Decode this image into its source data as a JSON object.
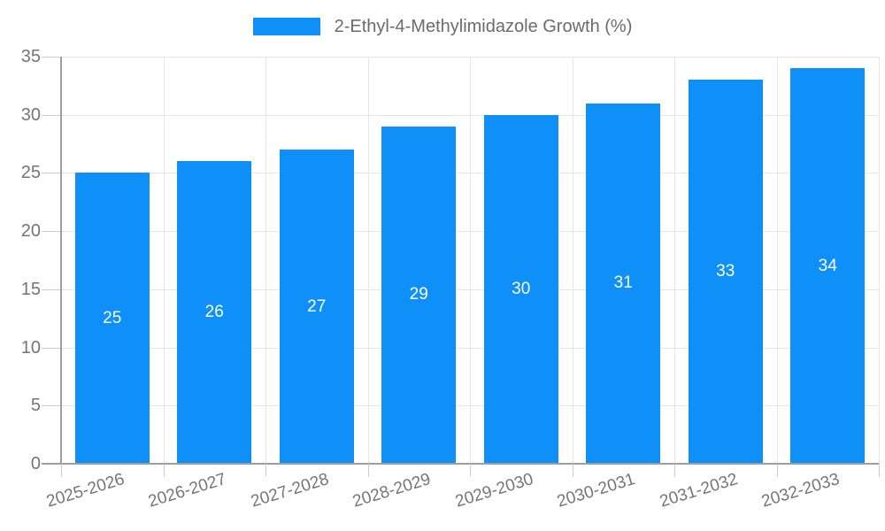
{
  "chart_data": {
    "type": "bar",
    "legend": "2-Ethyl-4-Methylimidazole Growth (%)",
    "series": [
      {
        "name": "2-Ethyl-4-Methylimidazole Growth (%)",
        "values": [
          25,
          26,
          27,
          29,
          30,
          31,
          33,
          34
        ]
      }
    ],
    "categories": [
      "2025-2026",
      "2026-2027",
      "2027-2028",
      "2028-2029",
      "2029-2030",
      "2030-2031",
      "2031-2032",
      "2032-2033"
    ],
    "bar_labels": [
      "25",
      "26",
      "27",
      "29",
      "30",
      "31",
      "33",
      "34"
    ],
    "yticks": [
      "0",
      "5",
      "10",
      "15",
      "20",
      "25",
      "30",
      "35"
    ],
    "ylim": [
      0,
      35
    ],
    "ytick_step": 5,
    "grid": true,
    "legend_position": "top-center",
    "xlabel": "",
    "ylabel": ""
  },
  "colors": {
    "bar": "#0e90f8",
    "bar_value_text": "#ffffff",
    "axis_text": "#757575",
    "legend_text": "#6b6b6b",
    "gridline": "#e6e6e6",
    "tick": "#cccccc",
    "axis_line": "#9e9e9e",
    "background": "#ffffff"
  }
}
